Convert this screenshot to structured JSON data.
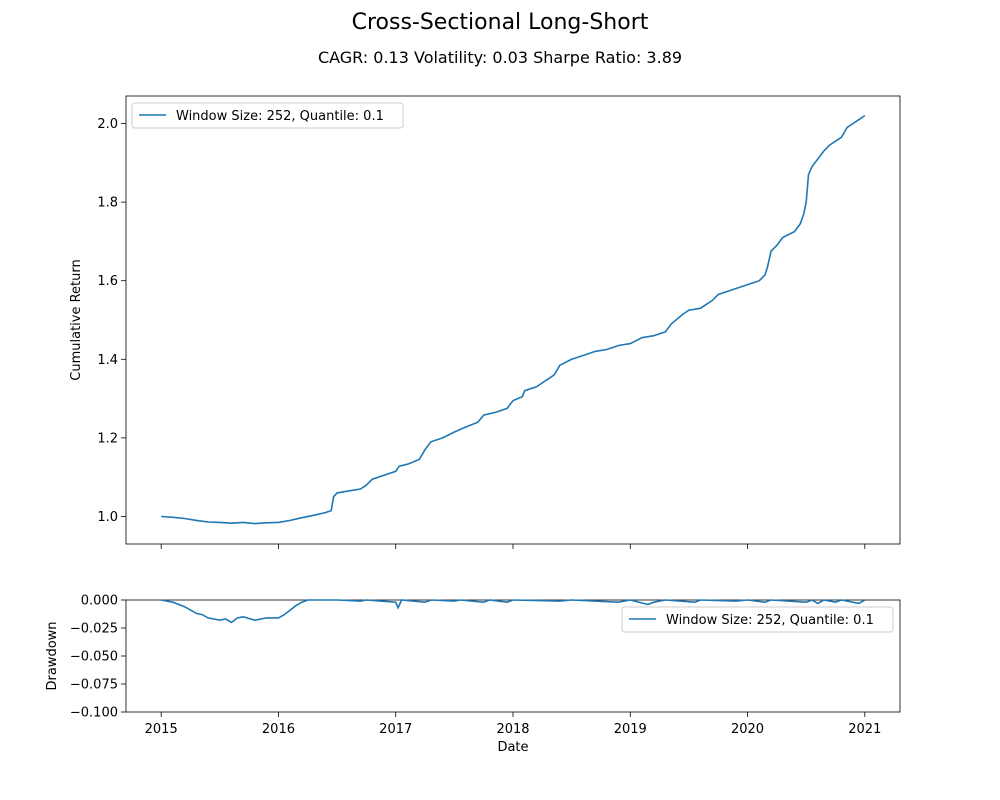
{
  "chart_data": [
    {
      "type": "line",
      "title": "Cross-Sectional Long-Short",
      "subtitle": "CAGR: 0.13 Volatility: 0.03 Sharpe Ratio: 3.89",
      "xlabel": "",
      "ylabel": "Cumulative Return",
      "xlim": [
        2014.7,
        2021.3
      ],
      "ylim": [
        0.93,
        2.07
      ],
      "x_ticks": [
        2015,
        2016,
        2017,
        2018,
        2019,
        2020,
        2021
      ],
      "y_ticks": [
        "1.0",
        "1.2",
        "1.4",
        "1.6",
        "1.8",
        "2.0"
      ],
      "grid": false,
      "legend_position": "upper-left",
      "color": "#1f77b4",
      "series": [
        {
          "name": "Window Size: 252, Quantile: 0.1",
          "points": [
            [
              2015.0,
              1.0
            ],
            [
              2015.1,
              0.998
            ],
            [
              2015.2,
              0.995
            ],
            [
              2015.3,
              0.99
            ],
            [
              2015.4,
              0.986
            ],
            [
              2015.5,
              0.985
            ],
            [
              2015.6,
              0.983
            ],
            [
              2015.7,
              0.985
            ],
            [
              2015.8,
              0.982
            ],
            [
              2015.9,
              0.984
            ],
            [
              2016.0,
              0.985
            ],
            [
              2016.1,
              0.99
            ],
            [
              2016.2,
              0.997
            ],
            [
              2016.3,
              1.003
            ],
            [
              2016.4,
              1.01
            ],
            [
              2016.45,
              1.015
            ],
            [
              2016.47,
              1.05
            ],
            [
              2016.5,
              1.06
            ],
            [
              2016.6,
              1.065
            ],
            [
              2016.7,
              1.07
            ],
            [
              2016.75,
              1.08
            ],
            [
              2016.8,
              1.095
            ],
            [
              2016.9,
              1.105
            ],
            [
              2017.0,
              1.115
            ],
            [
              2017.03,
              1.128
            ],
            [
              2017.1,
              1.133
            ],
            [
              2017.2,
              1.145
            ],
            [
              2017.25,
              1.17
            ],
            [
              2017.3,
              1.19
            ],
            [
              2017.4,
              1.2
            ],
            [
              2017.5,
              1.215
            ],
            [
              2017.6,
              1.228
            ],
            [
              2017.7,
              1.24
            ],
            [
              2017.75,
              1.258
            ],
            [
              2017.85,
              1.265
            ],
            [
              2017.95,
              1.275
            ],
            [
              2018.0,
              1.295
            ],
            [
              2018.08,
              1.305
            ],
            [
              2018.1,
              1.32
            ],
            [
              2018.2,
              1.33
            ],
            [
              2018.3,
              1.35
            ],
            [
              2018.35,
              1.36
            ],
            [
              2018.4,
              1.385
            ],
            [
              2018.5,
              1.4
            ],
            [
              2018.6,
              1.41
            ],
            [
              2018.7,
              1.42
            ],
            [
              2018.8,
              1.425
            ],
            [
              2018.9,
              1.435
            ],
            [
              2019.0,
              1.44
            ],
            [
              2019.1,
              1.455
            ],
            [
              2019.2,
              1.46
            ],
            [
              2019.3,
              1.47
            ],
            [
              2019.35,
              1.49
            ],
            [
              2019.45,
              1.515
            ],
            [
              2019.5,
              1.525
            ],
            [
              2019.6,
              1.53
            ],
            [
              2019.7,
              1.55
            ],
            [
              2019.75,
              1.565
            ],
            [
              2019.85,
              1.575
            ],
            [
              2019.95,
              1.585
            ],
            [
              2020.0,
              1.59
            ],
            [
              2020.1,
              1.6
            ],
            [
              2020.15,
              1.615
            ],
            [
              2020.17,
              1.635
            ],
            [
              2020.2,
              1.675
            ],
            [
              2020.25,
              1.69
            ],
            [
              2020.3,
              1.71
            ],
            [
              2020.4,
              1.725
            ],
            [
              2020.45,
              1.745
            ],
            [
              2020.48,
              1.77
            ],
            [
              2020.5,
              1.8
            ],
            [
              2020.52,
              1.87
            ],
            [
              2020.55,
              1.89
            ],
            [
              2020.6,
              1.91
            ],
            [
              2020.65,
              1.93
            ],
            [
              2020.7,
              1.945
            ],
            [
              2020.75,
              1.955
            ],
            [
              2020.8,
              1.965
            ],
            [
              2020.85,
              1.99
            ],
            [
              2020.9,
              2.0
            ],
            [
              2020.95,
              2.01
            ],
            [
              2021.0,
              2.02
            ]
          ]
        }
      ]
    },
    {
      "type": "line",
      "xlabel": "Date",
      "ylabel": "Drawdown",
      "xlim": [
        2014.7,
        2021.3
      ],
      "ylim": [
        -0.1,
        0.0
      ],
      "x_ticks": [
        "2015",
        "2016",
        "2017",
        "2018",
        "2019",
        "2020",
        "2021"
      ],
      "y_ticks": [
        "0.000",
        "−0.025",
        "−0.050",
        "−0.075",
        "−0.100"
      ],
      "grid": false,
      "legend_position": "upper-right",
      "color": "#1f77b4",
      "series": [
        {
          "name": "Window Size: 252, Quantile: 0.1",
          "points": [
            [
              2015.0,
              0.0
            ],
            [
              2015.05,
              -0.001
            ],
            [
              2015.1,
              -0.002
            ],
            [
              2015.2,
              -0.006
            ],
            [
              2015.3,
              -0.012
            ],
            [
              2015.35,
              -0.013
            ],
            [
              2015.4,
              -0.016
            ],
            [
              2015.5,
              -0.018
            ],
            [
              2015.55,
              -0.017
            ],
            [
              2015.6,
              -0.02
            ],
            [
              2015.65,
              -0.016
            ],
            [
              2015.7,
              -0.015
            ],
            [
              2015.8,
              -0.018
            ],
            [
              2015.9,
              -0.016
            ],
            [
              2016.0,
              -0.016
            ],
            [
              2016.05,
              -0.013
            ],
            [
              2016.1,
              -0.009
            ],
            [
              2016.15,
              -0.005
            ],
            [
              2016.2,
              -0.002
            ],
            [
              2016.25,
              0.0
            ],
            [
              2016.5,
              0.0
            ],
            [
              2016.7,
              -0.001
            ],
            [
              2016.75,
              0.0
            ],
            [
              2017.0,
              -0.002
            ],
            [
              2017.02,
              -0.007
            ],
            [
              2017.05,
              0.0
            ],
            [
              2017.25,
              -0.002
            ],
            [
              2017.3,
              0.0
            ],
            [
              2017.5,
              -0.001
            ],
            [
              2017.55,
              0.0
            ],
            [
              2017.75,
              -0.002
            ],
            [
              2017.8,
              0.0
            ],
            [
              2017.95,
              -0.002
            ],
            [
              2018.0,
              0.0
            ],
            [
              2018.4,
              -0.001
            ],
            [
              2018.5,
              0.0
            ],
            [
              2018.9,
              -0.002
            ],
            [
              2019.0,
              0.0
            ],
            [
              2019.15,
              -0.004
            ],
            [
              2019.2,
              -0.002
            ],
            [
              2019.3,
              0.0
            ],
            [
              2019.55,
              -0.002
            ],
            [
              2019.6,
              0.0
            ],
            [
              2019.9,
              -0.001
            ],
            [
              2020.0,
              0.0
            ],
            [
              2020.15,
              -0.002
            ],
            [
              2020.2,
              0.0
            ],
            [
              2020.5,
              -0.002
            ],
            [
              2020.55,
              0.0
            ],
            [
              2020.6,
              -0.003
            ],
            [
              2020.65,
              0.0
            ],
            [
              2020.75,
              -0.002
            ],
            [
              2020.8,
              0.0
            ],
            [
              2020.95,
              -0.003
            ],
            [
              2021.0,
              0.0
            ]
          ]
        }
      ]
    }
  ]
}
